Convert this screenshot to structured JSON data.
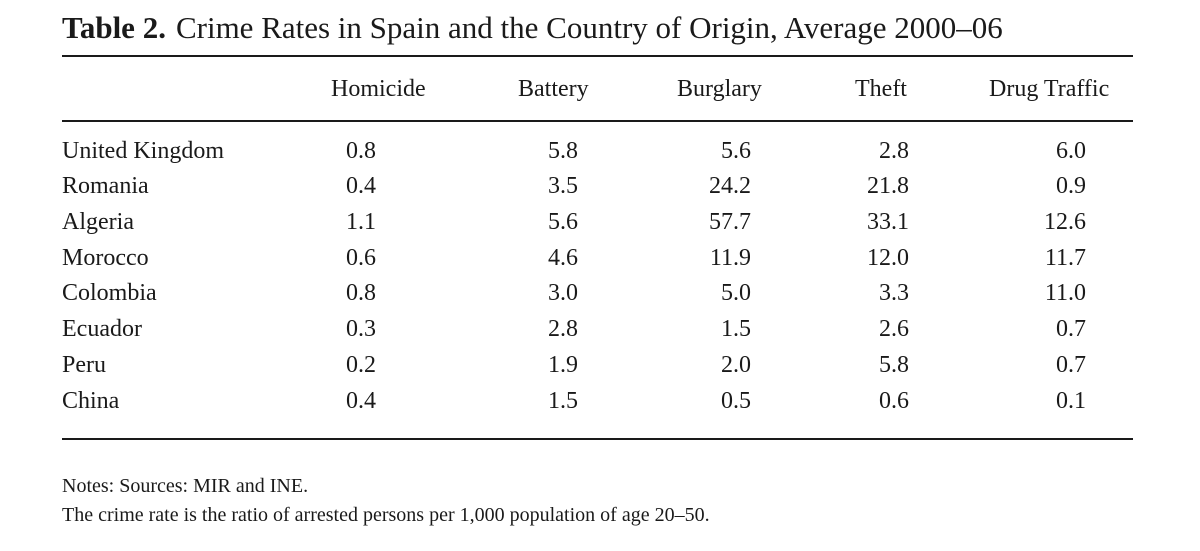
{
  "table": {
    "label": "Table 2.",
    "title": "Crime Rates in Spain and the Country of Origin, Average 2000–06",
    "columns": [
      "Homicide",
      "Battery",
      "Burglary",
      "Theft",
      "Drug Traffic"
    ],
    "rows": [
      {
        "country": "United Kingdom",
        "values": [
          "0.8",
          "5.8",
          "5.6",
          "2.8",
          "6.0"
        ]
      },
      {
        "country": "Romania",
        "values": [
          "0.4",
          "3.5",
          "24.2",
          "21.8",
          "0.9"
        ]
      },
      {
        "country": "Algeria",
        "values": [
          "1.1",
          "5.6",
          "57.7",
          "33.1",
          "12.6"
        ]
      },
      {
        "country": "Morocco",
        "values": [
          "0.6",
          "4.6",
          "11.9",
          "12.0",
          "11.7"
        ]
      },
      {
        "country": "Colombia",
        "values": [
          "0.8",
          "3.0",
          "5.0",
          "3.3",
          "11.0"
        ]
      },
      {
        "country": "Ecuador",
        "values": [
          "0.3",
          "2.8",
          "1.5",
          "2.6",
          "0.7"
        ]
      },
      {
        "country": "Peru",
        "values": [
          "0.2",
          "1.9",
          "2.0",
          "5.8",
          "0.7"
        ]
      },
      {
        "country": "China",
        "values": [
          "0.4",
          "1.5",
          "0.5",
          "0.6",
          "0.1"
        ]
      }
    ],
    "notes": [
      "Notes: Sources: MIR and INE.",
      "The crime rate is the ratio of arrested persons per 1,000 population of age 20–50."
    ]
  }
}
